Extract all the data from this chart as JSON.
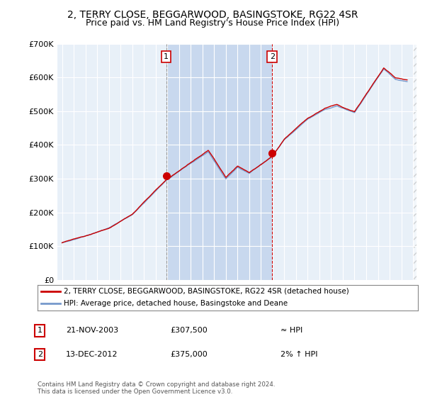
{
  "title": "2, TERRY CLOSE, BEGGARWOOD, BASINGSTOKE, RG22 4SR",
  "subtitle": "Price paid vs. HM Land Registry's House Price Index (HPI)",
  "title_fontsize": 10,
  "subtitle_fontsize": 9,
  "background_color": "#ffffff",
  "plot_bg_color": "#e8f0f8",
  "highlight_bg_color": "#c8d8ee",
  "grid_color": "#ffffff",
  "line1_color": "#cc0000",
  "line2_color": "#7799cc",
  "ylim": [
    0,
    700000
  ],
  "yticks": [
    0,
    100000,
    200000,
    300000,
    400000,
    500000,
    600000,
    700000
  ],
  "xlabel_start_year": 1995,
  "xlabel_end_year": 2025,
  "sale1_year": 2003.9,
  "sale1_price": 307500,
  "sale1_label": "1",
  "sale2_year": 2012.96,
  "sale2_price": 375000,
  "sale2_label": "2",
  "legend_line1": "2, TERRY CLOSE, BEGGARWOOD, BASINGSTOKE, RG22 4SR (detached house)",
  "legend_line2": "HPI: Average price, detached house, Basingstoke and Deane",
  "table_row1_num": "1",
  "table_row1_date": "21-NOV-2003",
  "table_row1_price": "£307,500",
  "table_row1_hpi": "≈ HPI",
  "table_row2_num": "2",
  "table_row2_date": "13-DEC-2012",
  "table_row2_price": "£375,000",
  "table_row2_hpi": "2% ↑ HPI",
  "footer": "Contains HM Land Registry data © Crown copyright and database right 2024.\nThis data is licensed under the Open Government Licence v3.0."
}
